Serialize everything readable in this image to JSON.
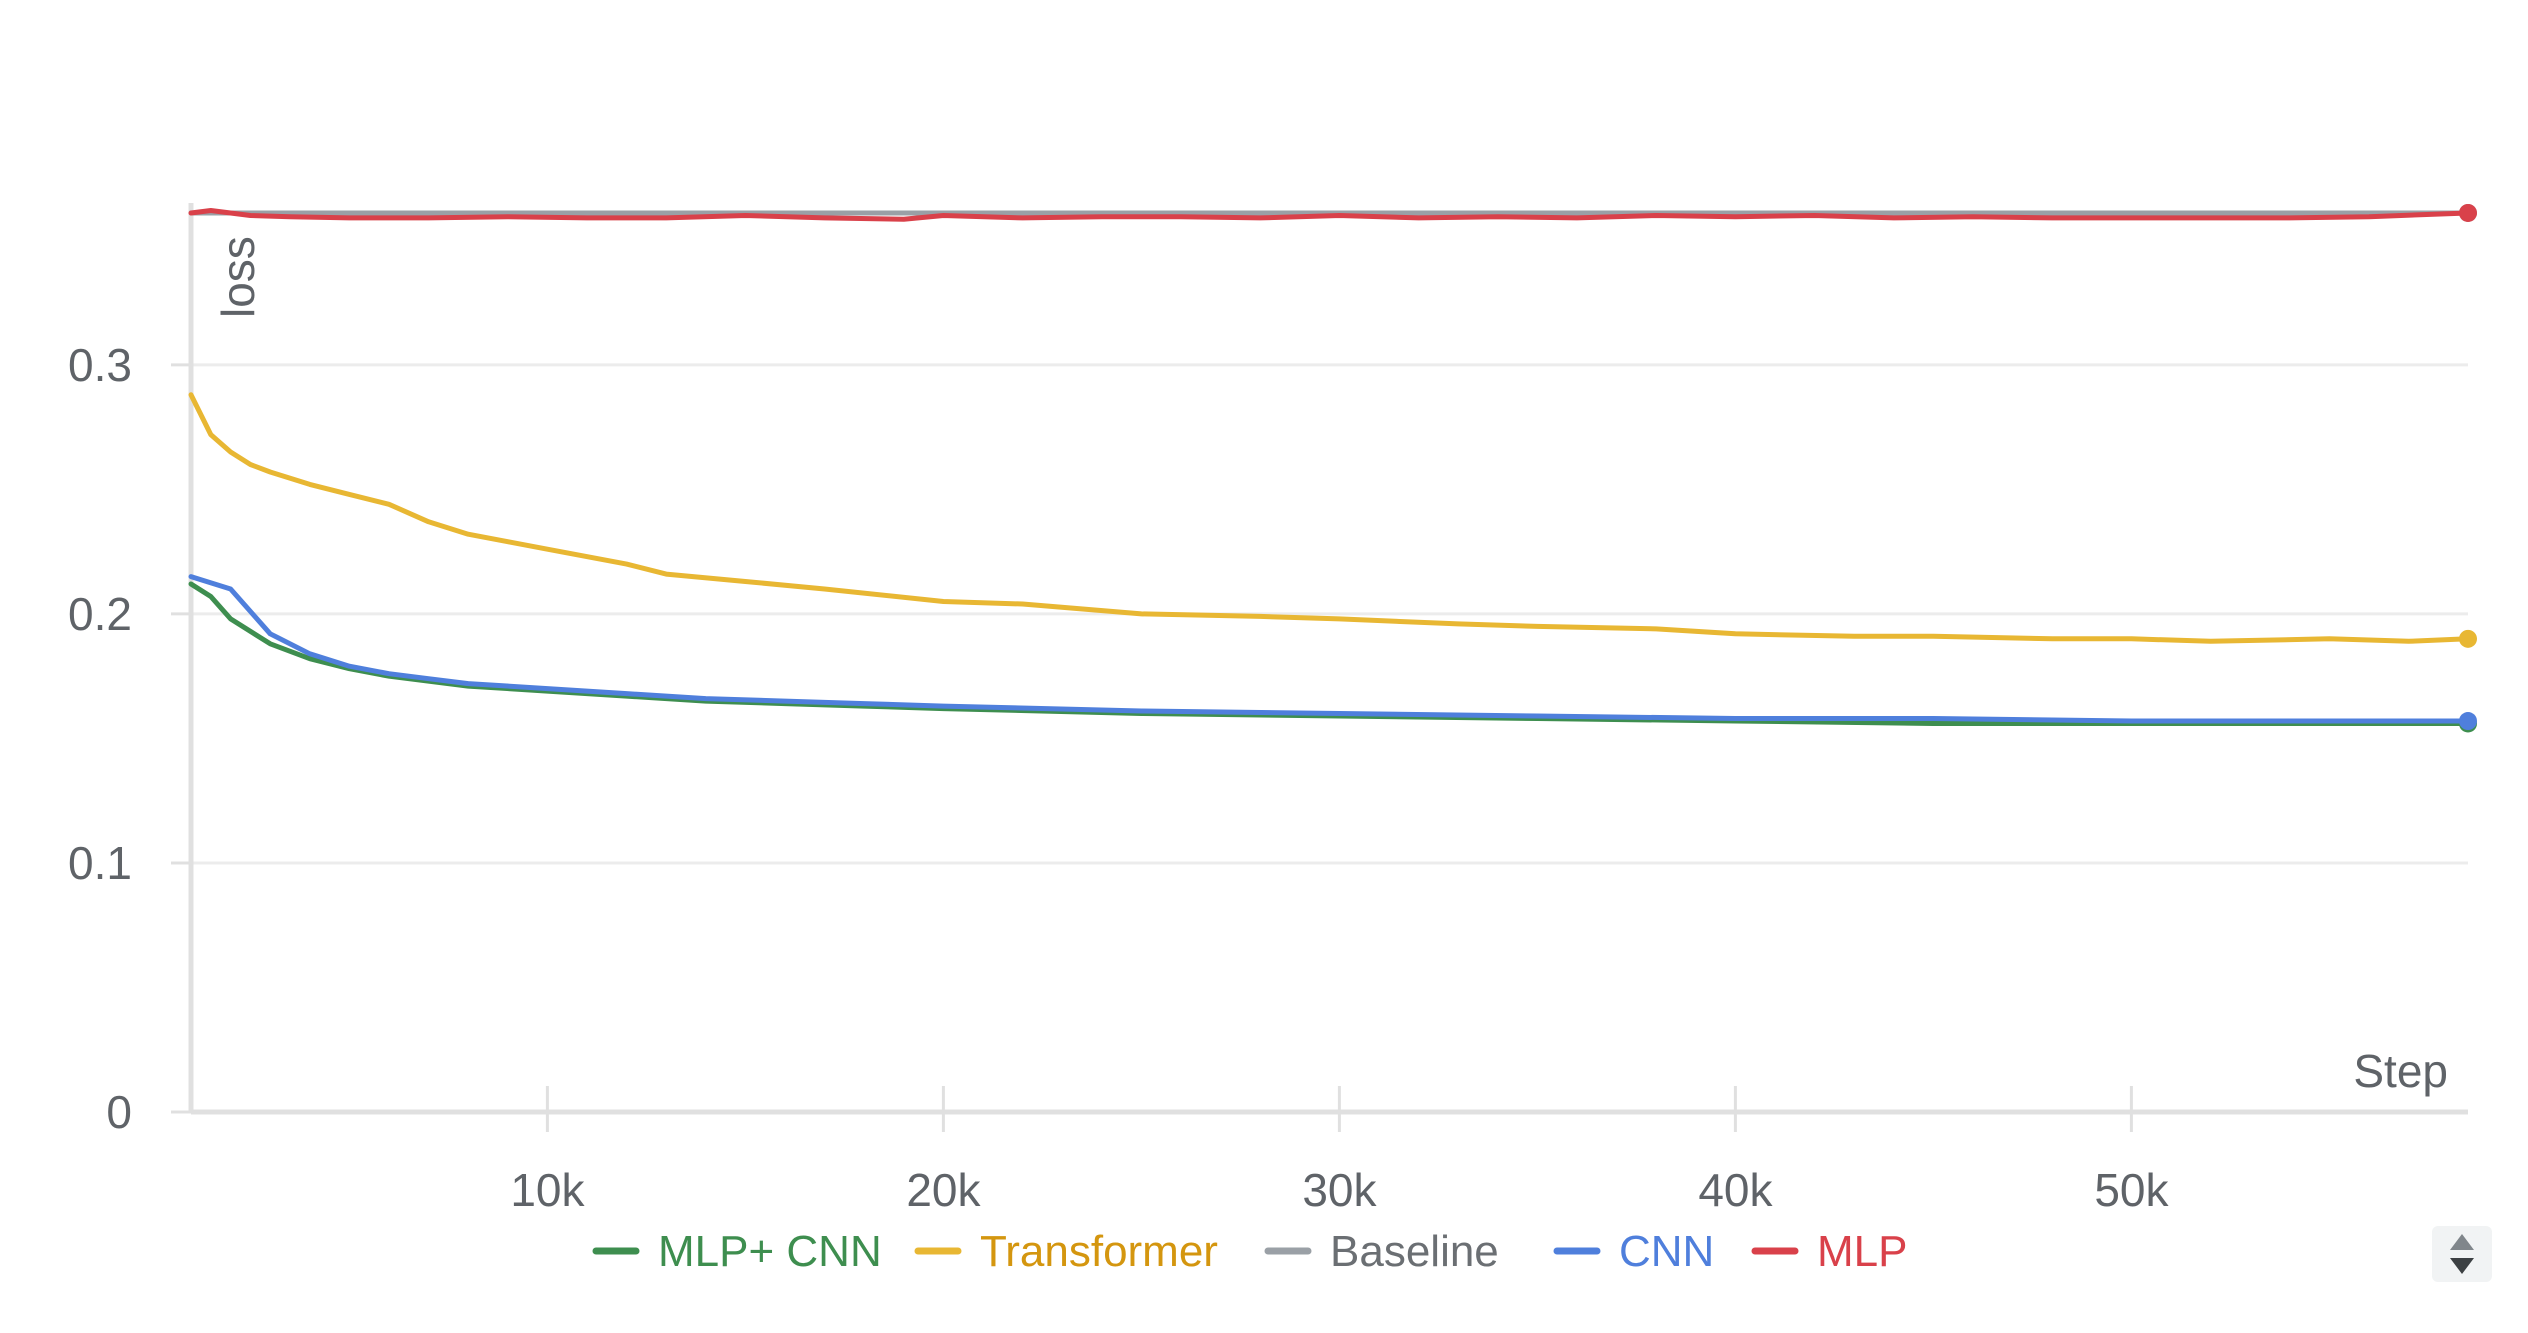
{
  "chart_data": {
    "type": "line",
    "ylabel": "loss",
    "xlabel": "Step",
    "xlim": [
      1000,
      58500
    ],
    "ylim": [
      0,
      0.365
    ],
    "x_ticks": [
      10000,
      20000,
      30000,
      40000,
      50000
    ],
    "x_tick_labels": [
      "10k",
      "20k",
      "30k",
      "40k",
      "50k"
    ],
    "y_ticks": [
      0,
      0.1,
      0.2,
      0.3
    ],
    "y_tick_labels": [
      "0",
      "0.1",
      "0.2",
      "0.3"
    ],
    "grid": true,
    "legend_position": "bottom",
    "series": [
      {
        "name": "MLP+ CNN",
        "color": "#3e8e4f",
        "x": [
          1000,
          1500,
          2000,
          3000,
          4000,
          5000,
          6000,
          7000,
          8000,
          10000,
          12000,
          14000,
          16000,
          18000,
          20000,
          25000,
          30000,
          35000,
          40000,
          45000,
          50000,
          55000,
          58500
        ],
        "y": [
          0.212,
          0.207,
          0.198,
          0.188,
          0.182,
          0.178,
          0.175,
          0.173,
          0.171,
          0.169,
          0.167,
          0.165,
          0.164,
          0.163,
          0.162,
          0.16,
          0.159,
          0.158,
          0.157,
          0.156,
          0.156,
          0.156,
          0.156
        ]
      },
      {
        "name": "Transformer",
        "color": "#e8b733",
        "x": [
          1000,
          1500,
          2000,
          2500,
          3000,
          4000,
          5000,
          6000,
          7000,
          8000,
          9000,
          10000,
          12000,
          13000,
          15000,
          17000,
          20000,
          22000,
          25000,
          28000,
          30000,
          33000,
          35000,
          38000,
          40000,
          43000,
          45000,
          48000,
          50000,
          52000,
          55000,
          57000,
          58500
        ],
        "y": [
          0.288,
          0.272,
          0.265,
          0.26,
          0.257,
          0.252,
          0.248,
          0.244,
          0.237,
          0.232,
          0.229,
          0.226,
          0.22,
          0.216,
          0.213,
          0.21,
          0.205,
          0.204,
          0.2,
          0.199,
          0.198,
          0.196,
          0.195,
          0.194,
          0.192,
          0.191,
          0.191,
          0.19,
          0.19,
          0.189,
          0.19,
          0.189,
          0.19
        ]
      },
      {
        "name": "Baseline",
        "color": "#9aa0a6",
        "x": [
          1000,
          3000,
          6000,
          10000,
          14000,
          18000,
          22000,
          26000,
          30000,
          34000,
          38000,
          42000,
          46000,
          50000,
          54000,
          58500
        ],
        "y": [
          0.361,
          0.361,
          0.361,
          0.361,
          0.361,
          0.361,
          0.361,
          0.361,
          0.361,
          0.361,
          0.361,
          0.361,
          0.361,
          0.361,
          0.361,
          0.361
        ]
      },
      {
        "name": "CNN",
        "color": "#4f7fdc",
        "x": [
          1000,
          2000,
          3000,
          4000,
          5000,
          6000,
          7000,
          8000,
          10000,
          12000,
          14000,
          16000,
          18000,
          20000,
          25000,
          30000,
          35000,
          40000,
          45000,
          50000,
          55000,
          58500
        ],
        "y": [
          0.215,
          0.21,
          0.192,
          0.184,
          0.179,
          0.176,
          0.174,
          0.172,
          0.17,
          0.168,
          0.166,
          0.165,
          0.164,
          0.163,
          0.161,
          0.16,
          0.159,
          0.158,
          0.158,
          0.157,
          0.157,
          0.157
        ]
      },
      {
        "name": "MLP",
        "color": "#d9414a",
        "x": [
          1000,
          1500,
          2000,
          2500,
          3500,
          5000,
          7000,
          9000,
          11000,
          13000,
          15000,
          17000,
          19000,
          20000,
          22000,
          24000,
          26000,
          28000,
          30000,
          32000,
          34000,
          36000,
          38000,
          40000,
          42000,
          44000,
          46000,
          48000,
          50000,
          52000,
          54000,
          56000,
          58500
        ],
        "y": [
          0.361,
          0.362,
          0.361,
          0.36,
          0.3595,
          0.359,
          0.359,
          0.3595,
          0.359,
          0.359,
          0.36,
          0.359,
          0.3585,
          0.36,
          0.359,
          0.3595,
          0.3595,
          0.359,
          0.36,
          0.359,
          0.3595,
          0.359,
          0.36,
          0.3595,
          0.36,
          0.359,
          0.3595,
          0.359,
          0.359,
          0.359,
          0.359,
          0.3595,
          0.361
        ]
      }
    ]
  },
  "legend_scroll_icon": "up-down-arrows-icon"
}
